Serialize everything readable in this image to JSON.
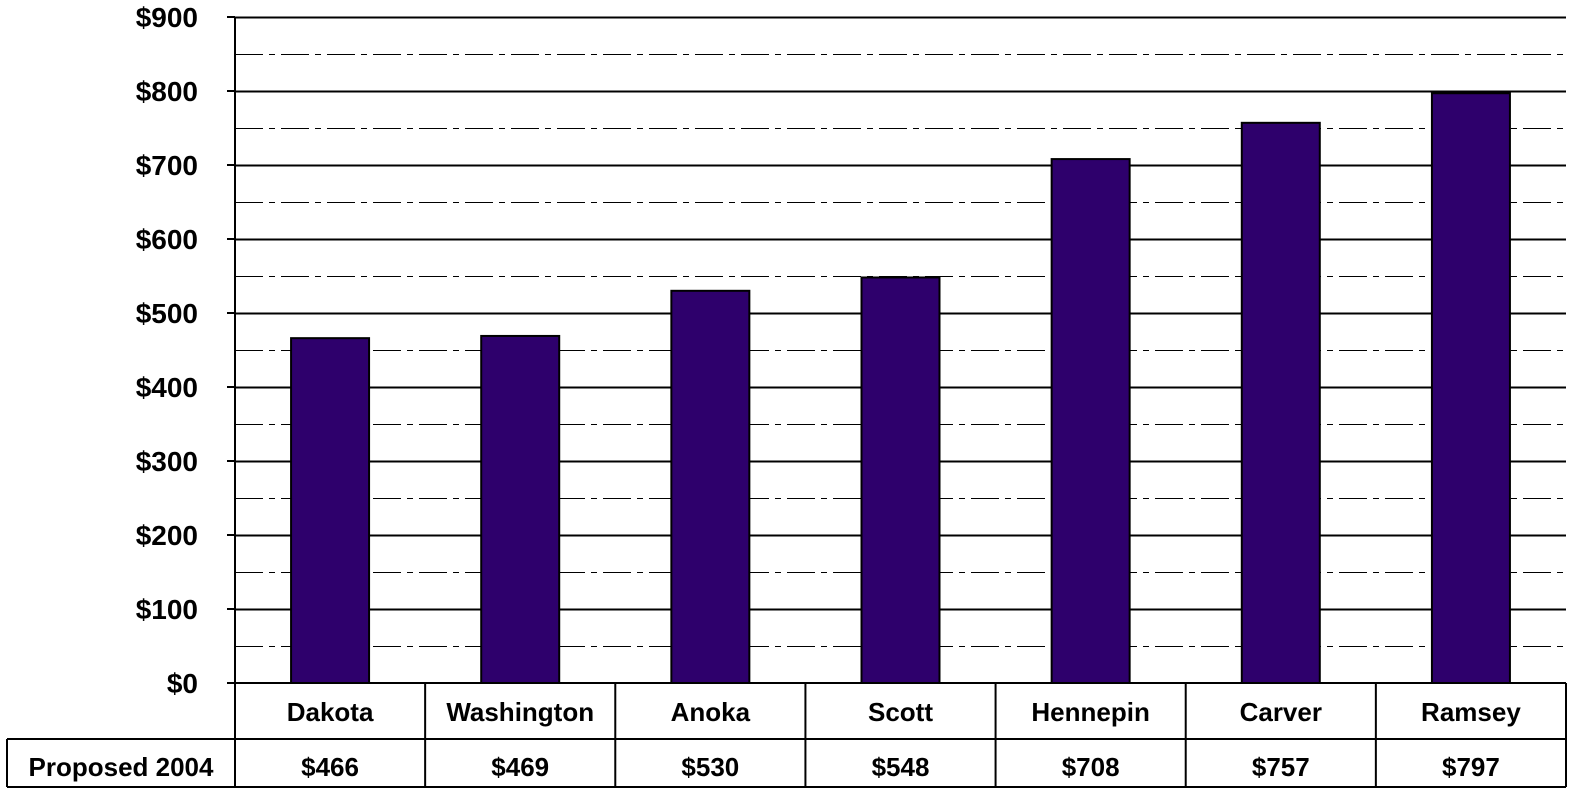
{
  "chart_data": {
    "type": "bar",
    "categories": [
      "Dakota",
      "Washington",
      "Anoka",
      "Scott",
      "Hennepin",
      "Carver",
      "Ramsey"
    ],
    "series": [
      {
        "name": "Proposed 2004",
        "values": [
          466,
          469,
          530,
          548,
          708,
          757,
          797
        ],
        "labels": [
          "$466",
          "$469",
          "$530",
          "$548",
          "$708",
          "$757",
          "$797"
        ],
        "color": "#2E006C"
      }
    ],
    "y_ticks": [
      "$0",
      "$100",
      "$200",
      "$300",
      "$400",
      "$500",
      "$600",
      "$700",
      "$800",
      "$900"
    ],
    "ylim": [
      0,
      900
    ],
    "major_grid_step": 100,
    "minor_grid_step": 50,
    "grid": true,
    "data_table": true,
    "title": "",
    "xlabel": "",
    "ylabel": ""
  }
}
